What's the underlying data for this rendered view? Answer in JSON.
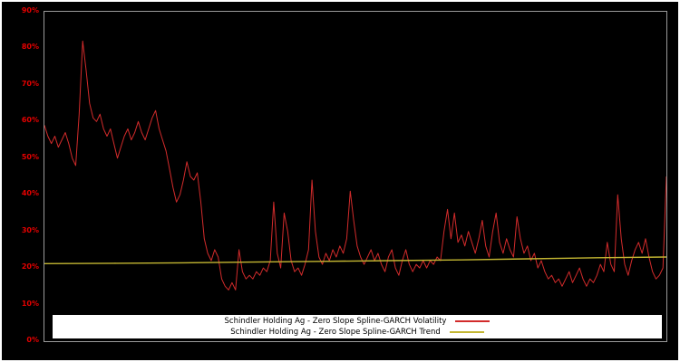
{
  "chart_data": {
    "type": "line",
    "title": "",
    "xlabel": "",
    "ylabel": "",
    "ylim": [
      0,
      90
    ],
    "grid": false,
    "background_color": "#000000",
    "axis_label_color": "#e60000",
    "plot_border_color": "#9a9a9a",
    "legend_position": "bottom-center",
    "y_ticks": [
      {
        "value": 90,
        "label": "90%"
      },
      {
        "value": 80,
        "label": "80%"
      },
      {
        "value": 70,
        "label": "70%"
      },
      {
        "value": 60,
        "label": "60%"
      },
      {
        "value": 50,
        "label": "50%"
      },
      {
        "value": 40,
        "label": "40%"
      },
      {
        "value": 30,
        "label": "30%"
      },
      {
        "value": 20,
        "label": "20%"
      },
      {
        "value": 10,
        "label": "10%"
      },
      {
        "value": 0,
        "label": "0%"
      }
    ],
    "series": [
      {
        "name": "Schindler Holding Ag - Zero Slope Spline-GARCH Volatility",
        "slug": "volatility-line",
        "color": "#d22b2b",
        "width": 1,
        "values": [
          59,
          56,
          54,
          56,
          53,
          55,
          57,
          54,
          50,
          48,
          62,
          82,
          74,
          65,
          61,
          60,
          62,
          58,
          56,
          58,
          54,
          50,
          53,
          56,
          58,
          55,
          57,
          60,
          57,
          55,
          58,
          61,
          63,
          58,
          55,
          52,
          47,
          42,
          38,
          40,
          44,
          49,
          45,
          44,
          46,
          38,
          28,
          24,
          22,
          25,
          23,
          17,
          15,
          14,
          16,
          14,
          25,
          19,
          17,
          18,
          17,
          19,
          18,
          20,
          19,
          22,
          38,
          24,
          20,
          35,
          30,
          22,
          19,
          20,
          18,
          21,
          25,
          44,
          30,
          23,
          21,
          24,
          22,
          25,
          23,
          26,
          24,
          28,
          41,
          33,
          26,
          23,
          21,
          23,
          25,
          22,
          24,
          21,
          19,
          23,
          25,
          20,
          18,
          22,
          25,
          21,
          19,
          21,
          20,
          22,
          20,
          22,
          21,
          23,
          22,
          30,
          36,
          28,
          35,
          27,
          29,
          26,
          30,
          27,
          24,
          28,
          33,
          26,
          23,
          30,
          35,
          27,
          24,
          28,
          25,
          23,
          34,
          28,
          24,
          26,
          22,
          24,
          20,
          22,
          19,
          17,
          18,
          16,
          17,
          15,
          17,
          19,
          16,
          18,
          20,
          17,
          15,
          17,
          16,
          18,
          21,
          19,
          27,
          21,
          19,
          40,
          28,
          21,
          18,
          22,
          25,
          27,
          24,
          28,
          23,
          19,
          17,
          18,
          20,
          45
        ]
      },
      {
        "name": "Schindler Holding Ag - Zero Slope Spline-GARCH Trend",
        "slug": "trend-line",
        "color": "#c3b632",
        "width": 1.4,
        "values": [
          21.2,
          21.3,
          21.4,
          21.6,
          21.8,
          22.0,
          22.2,
          22.5,
          22.8,
          23.0
        ]
      }
    ]
  },
  "legend": {
    "items": [
      {
        "label": "Schindler Holding Ag - Zero Slope Spline-GARCH Volatility"
      },
      {
        "label": "Schindler Holding Ag - Zero Slope Spline-GARCH Trend"
      }
    ]
  }
}
